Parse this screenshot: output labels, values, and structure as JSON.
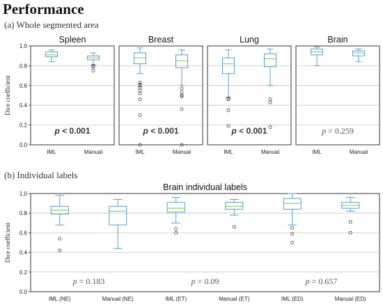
{
  "header": {
    "title": "Performance",
    "section_a": "(a) Whole segmented area",
    "section_b": "(b) Individual labels"
  },
  "colors": {
    "box": "#4f9fd1",
    "median": "#8fcf5a",
    "grid": "#c8c8c8",
    "outlier": "#444444"
  },
  "chart_data": [
    {
      "type": "box",
      "title": "Spleen",
      "ylabel": "Dice coefficient",
      "ylim": [
        0,
        1.0
      ],
      "yticks": [
        "0.0",
        "0.2",
        "0.4",
        "0.6",
        "0.8",
        "1.0"
      ],
      "grid": true,
      "categories": [
        "IML",
        "Manual"
      ],
      "boxes": [
        {
          "whislo": 0.84,
          "q1": 0.89,
          "med": 0.91,
          "q3": 0.94,
          "whishi": 0.96,
          "fliers": []
        },
        {
          "whislo": 0.81,
          "q1": 0.86,
          "med": 0.88,
          "q3": 0.9,
          "whishi": 0.93,
          "fliers": [
            0.8,
            0.79,
            0.75
          ]
        }
      ],
      "annotation": {
        "prefix": "p",
        "text": " < 0.001",
        "style": "bold"
      }
    },
    {
      "type": "box",
      "title": "Breast",
      "ylim": [
        0,
        1.0
      ],
      "grid": true,
      "categories": [
        "IML",
        "Manual"
      ],
      "boxes": [
        {
          "whislo": 0.72,
          "q1": 0.82,
          "med": 0.88,
          "q3": 0.93,
          "whishi": 0.98,
          "fliers": [
            0.63,
            0.61,
            0.6,
            0.58,
            0.55,
            0.52,
            0.46,
            0.3,
            0.0
          ]
        },
        {
          "whislo": 0.6,
          "q1": 0.78,
          "med": 0.85,
          "q3": 0.91,
          "whishi": 0.96,
          "fliers": [
            0.57,
            0.53,
            0.5,
            0.49,
            0.36,
            0.0
          ]
        }
      ],
      "annotation": {
        "prefix": "p",
        "text": " < 0.001",
        "style": "bold"
      }
    },
    {
      "type": "box",
      "title": "Lung",
      "ylim": [
        0,
        1.0
      ],
      "grid": true,
      "categories": [
        "IML",
        "Manual"
      ],
      "boxes": [
        {
          "whislo": 0.48,
          "q1": 0.72,
          "med": 0.82,
          "q3": 0.88,
          "whishi": 0.96,
          "fliers": [
            0.47,
            0.46,
            0.35,
            0.19
          ]
        },
        {
          "whislo": 0.6,
          "q1": 0.79,
          "med": 0.87,
          "q3": 0.92,
          "whishi": 0.97,
          "fliers": [
            0.46,
            0.43,
            0.18
          ]
        }
      ],
      "annotation": {
        "prefix": "p",
        "text": " < 0.001",
        "style": "bold"
      }
    },
    {
      "type": "box",
      "title": "Brain",
      "ylim": [
        0,
        1.0
      ],
      "grid": true,
      "categories": [
        "IML",
        "Manual"
      ],
      "boxes": [
        {
          "whislo": 0.8,
          "q1": 0.91,
          "med": 0.94,
          "q3": 0.97,
          "whishi": 0.99,
          "fliers": []
        },
        {
          "whislo": 0.84,
          "q1": 0.9,
          "med": 0.93,
          "q3": 0.95,
          "whishi": 0.97,
          "fliers": []
        }
      ],
      "annotation": {
        "prefix": "p",
        "text": " = 0.259",
        "style": "normal"
      }
    },
    {
      "type": "box",
      "title": "Brain individual labels",
      "ylabel": "Dice coefficient",
      "ylim": [
        0,
        1.0
      ],
      "yticks": [
        "0.0",
        "0.2",
        "0.4",
        "0.6",
        "0.8",
        "1.0"
      ],
      "grid": true,
      "categories": [
        "IML (NE)",
        "Manual (NE)",
        "IML (ET)",
        "Manual (ET)",
        "IML (ED)",
        "Manual (ED)"
      ],
      "boxes": [
        {
          "whislo": 0.68,
          "q1": 0.79,
          "med": 0.83,
          "q3": 0.87,
          "whishi": 0.98,
          "fliers": [
            0.54,
            0.42
          ]
        },
        {
          "whislo": 0.44,
          "q1": 0.68,
          "med": 0.82,
          "q3": 0.87,
          "whishi": 0.94,
          "fliers": []
        },
        {
          "whislo": 0.7,
          "q1": 0.81,
          "med": 0.85,
          "q3": 0.91,
          "whishi": 0.96,
          "fliers": [
            0.64,
            0.6
          ]
        },
        {
          "whislo": 0.78,
          "q1": 0.84,
          "med": 0.87,
          "q3": 0.91,
          "whishi": 0.94,
          "fliers": [
            0.66
          ]
        },
        {
          "whislo": 0.68,
          "q1": 0.84,
          "med": 0.9,
          "q3": 0.95,
          "whishi": 1.0,
          "fliers": [
            0.65,
            0.59,
            0.5
          ]
        },
        {
          "whislo": 0.82,
          "q1": 0.85,
          "med": 0.88,
          "q3": 0.91,
          "whishi": 0.96,
          "fliers": [
            0.71,
            0.6
          ]
        }
      ],
      "annotations": [
        {
          "prefix": "p",
          "text": " = 0.183",
          "style": "normal"
        },
        {
          "prefix": "p",
          "text": " = 0.09",
          "style": "normal"
        },
        {
          "prefix": "p",
          "text": " = 0.657",
          "style": "normal"
        }
      ]
    }
  ]
}
